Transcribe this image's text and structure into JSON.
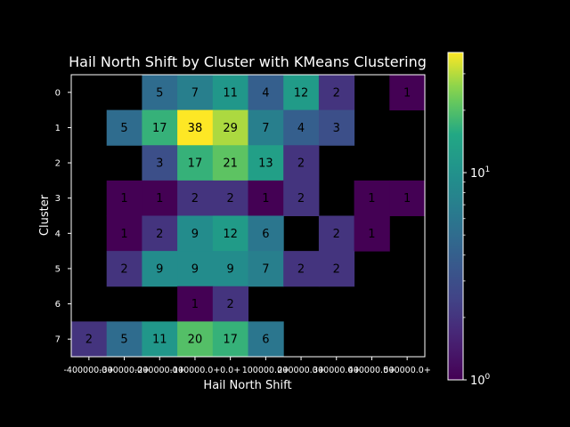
{
  "chart_data": {
    "type": "heatmap",
    "title": "Hail North Shift by Cluster with KMeans Clustering",
    "xlabel": "Hail North Shift",
    "ylabel": "Cluster",
    "x_categories": [
      "-400000.0+",
      "-300000.0+",
      "-200000.0+",
      "-100000.0+",
      "0.0+",
      "100000.0+",
      "200000.0+",
      "300000.0+",
      "400000.0+",
      "500000.0+"
    ],
    "y_categories": [
      "0",
      "1",
      "2",
      "3",
      "4",
      "5",
      "6",
      "7"
    ],
    "values": [
      [
        null,
        null,
        5,
        7,
        11,
        4,
        12,
        2,
        null,
        1
      ],
      [
        null,
        5,
        17,
        38,
        29,
        7,
        4,
        3,
        null,
        null
      ],
      [
        null,
        null,
        3,
        17,
        21,
        13,
        2,
        null,
        null,
        null
      ],
      [
        null,
        1,
        1,
        2,
        2,
        1,
        2,
        null,
        1,
        1
      ],
      [
        null,
        1,
        2,
        9,
        12,
        6,
        null,
        2,
        1,
        null
      ],
      [
        null,
        2,
        9,
        9,
        9,
        7,
        2,
        2,
        null,
        null
      ],
      [
        null,
        null,
        null,
        1,
        2,
        null,
        null,
        null,
        null,
        null
      ],
      [
        2,
        5,
        11,
        20,
        17,
        6,
        null,
        null,
        null,
        null
      ]
    ],
    "colorbar": {
      "scale": "log",
      "colormap": "viridis",
      "range": [
        1,
        38
      ],
      "ticks": [
        {
          "value": 1,
          "base": "10",
          "exp": "0"
        },
        {
          "value": 10,
          "base": "10",
          "exp": "1"
        }
      ]
    },
    "background": "#000000",
    "text_color": "#ffffff"
  }
}
